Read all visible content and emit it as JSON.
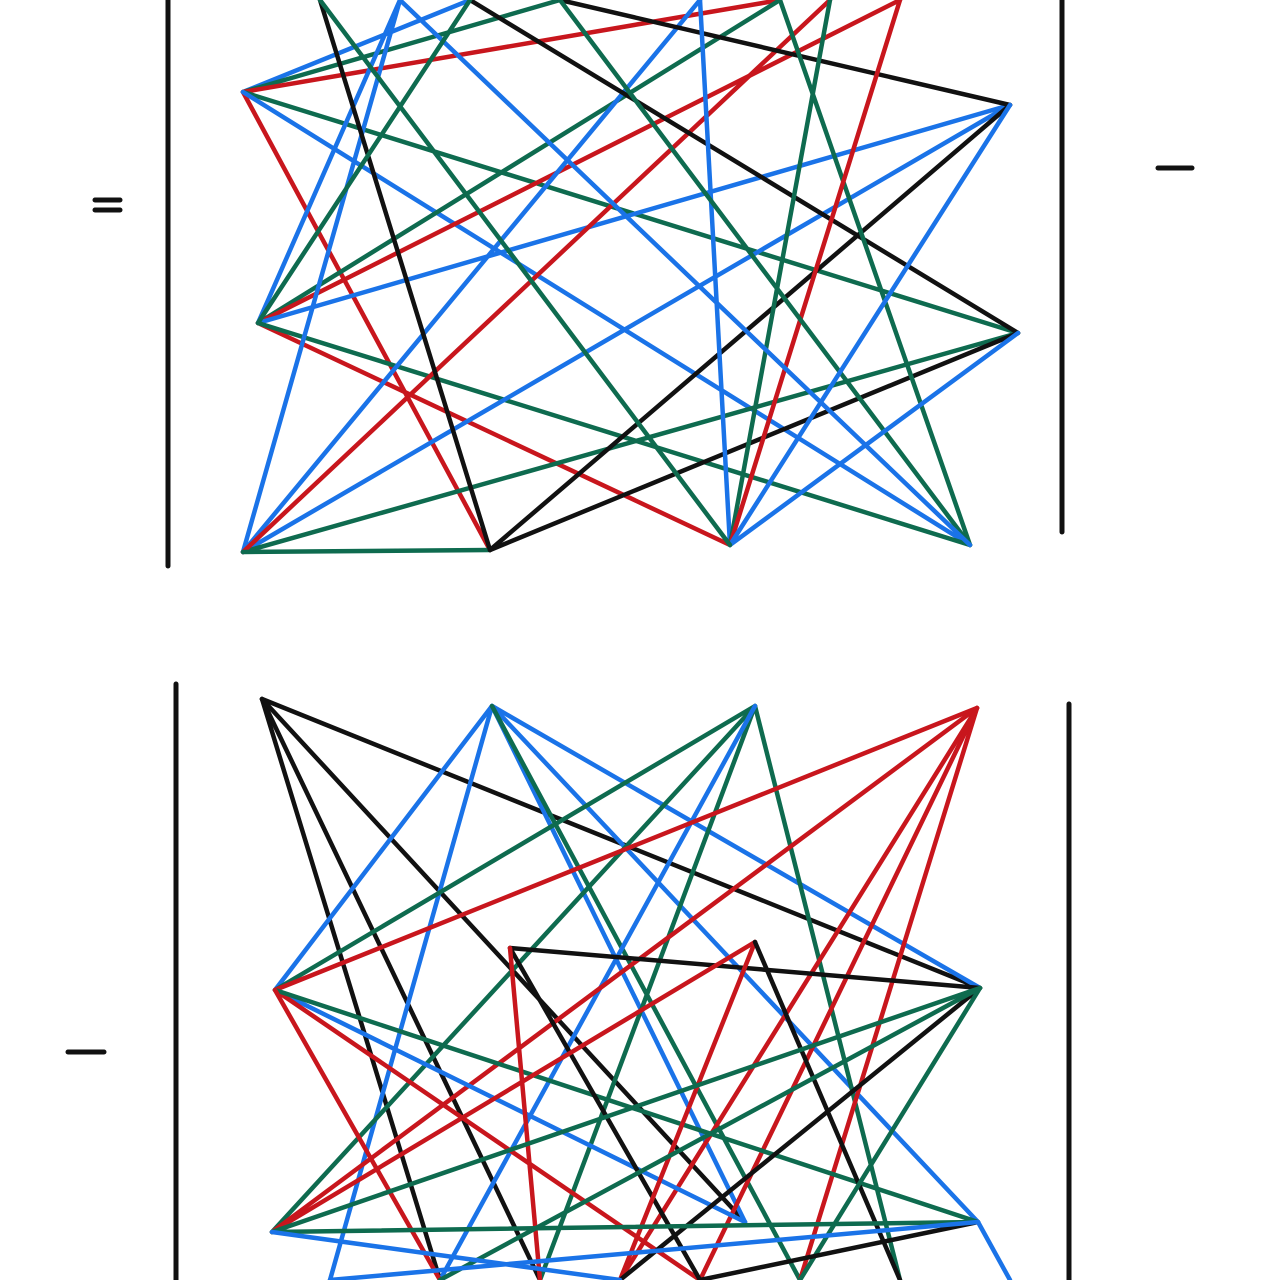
{
  "palette": {
    "black": "#111111",
    "red": "#c8161d",
    "blue": "#1a73e8",
    "green": "#0e6b4f"
  },
  "top_panel": {
    "marks": [
      "double-bar",
      "bar-right"
    ],
    "colors": [
      "black",
      "red",
      "blue",
      "green"
    ]
  },
  "bottom_panel": {
    "marks": [
      "bar-left"
    ],
    "colors": [
      "black",
      "red",
      "blue",
      "green"
    ]
  }
}
